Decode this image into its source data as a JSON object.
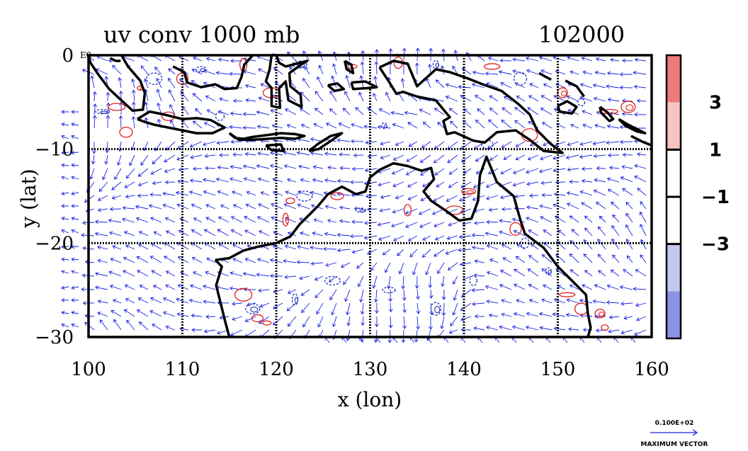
{
  "title": "uv conv 1000 mb",
  "timestamp": "102000",
  "xlabel": "x (lon)",
  "ylabel": "y (lat)",
  "corner_small_label": "E0",
  "x_ticks": [
    {
      "value": 100,
      "label": "100"
    },
    {
      "value": 110,
      "label": "110"
    },
    {
      "value": 120,
      "label": "120"
    },
    {
      "value": 130,
      "label": "130"
    },
    {
      "value": 140,
      "label": "140"
    },
    {
      "value": 150,
      "label": "150"
    },
    {
      "value": 160,
      "label": "160"
    }
  ],
  "y_ticks": [
    {
      "value": 0,
      "label": "0"
    },
    {
      "value": -10,
      "label": "−10"
    },
    {
      "value": -20,
      "label": "−20"
    },
    {
      "value": -30,
      "label": "−30"
    }
  ],
  "colorbar": {
    "levels": [
      "3",
      "1",
      "−1",
      "−3"
    ],
    "colors": [
      "#ee7a7a",
      "#f7c4c4",
      "#ffffff",
      "#ffffff",
      "#c4c8f2",
      "#8a92e6"
    ]
  },
  "vector_key": {
    "magnitude_label": "0.100E+02",
    "caption": "MAXIMUM VECTOR"
  },
  "colors": {
    "vectors": "#1a22e0",
    "coast": "#000000",
    "pos_contour": "#e02020",
    "neg_contour": "#2030c0"
  },
  "chart_data": {
    "type": "vector-field-map",
    "xlim": [
      100,
      160
    ],
    "ylim": [
      -30,
      0
    ],
    "grid": true,
    "vector_max_magnitude": 10
  }
}
